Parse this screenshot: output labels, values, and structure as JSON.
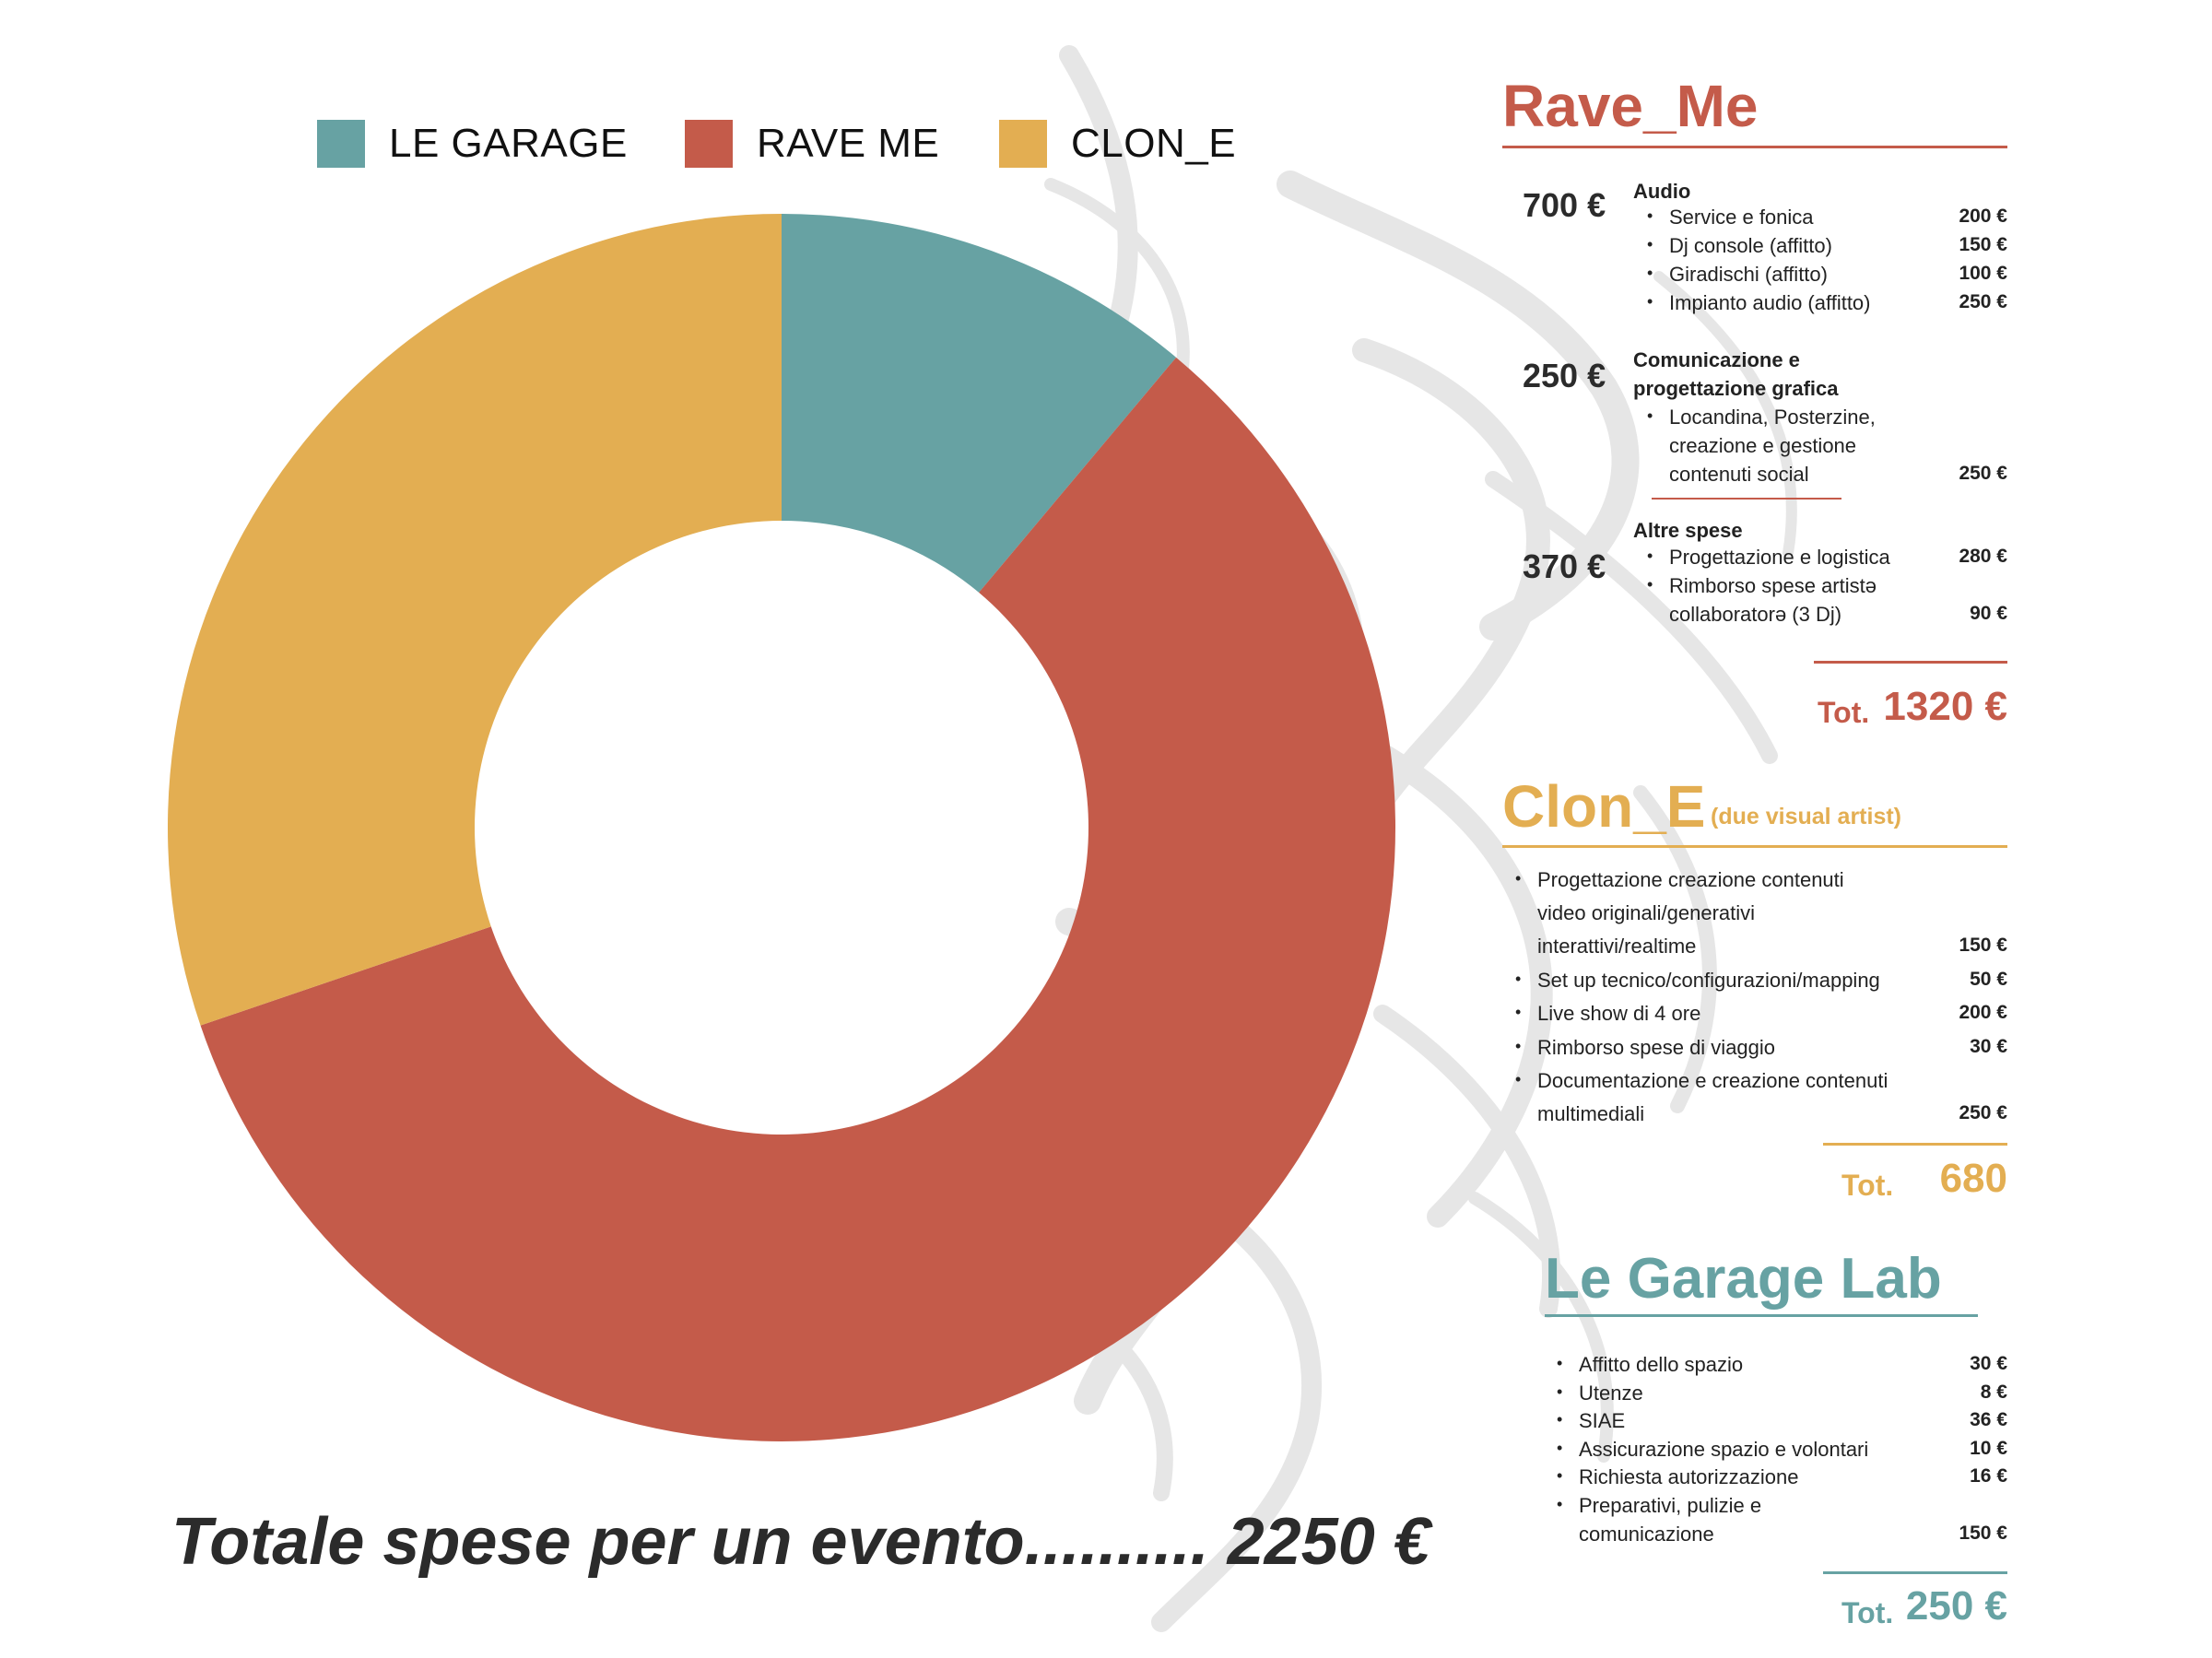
{
  "colors": {
    "le_garage": "#67a2a3",
    "rave_me": "#c45b4a",
    "clon_e": "#e3ae52",
    "background_art": "#e8e8e8"
  },
  "chart_data": {
    "type": "pie",
    "donut": true,
    "categories": [
      "LE GARAGE",
      "RAVE ME",
      "CLON_E"
    ],
    "values": [
      250,
      1320,
      680
    ],
    "legend": "top",
    "colors": [
      "#67a2a3",
      "#c45b4a",
      "#e3ae52"
    ]
  },
  "grand_total": "Totale spese per un evento.......... 2250 €",
  "rave_me": {
    "title": "Rave_Me",
    "groups": [
      {
        "amount": "700 €",
        "title": "Audio",
        "items": [
          {
            "label": "Service e fonica",
            "price": "200 €"
          },
          {
            "label": "Dj console (affitto)",
            "price": "150 €"
          },
          {
            "label": "Giradischi (affitto)",
            "price": "100 €"
          },
          {
            "label": "Impianto audio (affitto)",
            "price": "250 €"
          }
        ]
      },
      {
        "amount": "250 €",
        "title_lines": [
          "Comunicazione e",
          "progettazione grafica"
        ],
        "item_lines": [
          "Locandina, Posterzine,",
          "creazione e gestione",
          "contenuti social"
        ],
        "price": "250 €"
      },
      {
        "amount": "370 €",
        "title": "Altre spese",
        "items": [
          {
            "label": "Progettazione e logistica",
            "price": "280 €"
          },
          {
            "label": "Rimborso spese artistə",
            "price": ""
          },
          {
            "label": "collaboratorə (3 Dj)",
            "price": "90 €"
          }
        ]
      }
    ],
    "tot_label": "Tot.",
    "tot_value": "1320 €"
  },
  "clon_e": {
    "title": "Clon_E",
    "subtitle": "(due visual artist)",
    "lines": [
      {
        "text": "Progettazione creazione contenuti",
        "bullet": true,
        "price": ""
      },
      {
        "text": "video originali/generativi",
        "bullet": false,
        "price": ""
      },
      {
        "text": "interattivi/realtime",
        "bullet": false,
        "price": "150 €"
      },
      {
        "text": "Set up tecnico/configurazioni/mapping",
        "bullet": true,
        "price": "50 €"
      },
      {
        "text": "Live show di 4 ore",
        "bullet": true,
        "price": "200 €"
      },
      {
        "text": "Rimborso spese di viaggio",
        "bullet": true,
        "price": "30 €"
      },
      {
        "text": "Documentazione e creazione contenuti",
        "bullet": true,
        "price": ""
      },
      {
        "text": "multimediali",
        "bullet": false,
        "price": "250 €"
      }
    ],
    "tot_label": "Tot.",
    "tot_value": "680"
  },
  "le_garage_lab": {
    "title": "Le Garage Lab",
    "lines": [
      {
        "text": "Affitto dello spazio",
        "bullet": true,
        "price": "30 €"
      },
      {
        "text": "Utenze",
        "bullet": true,
        "price": "8 €"
      },
      {
        "text": "SIAE",
        "bullet": true,
        "price": "36 €"
      },
      {
        "text": "Assicurazione spazio e volontari",
        "bullet": true,
        "price": "10 €"
      },
      {
        "text": "Richiesta autorizzazione",
        "bullet": true,
        "price": "16 €"
      },
      {
        "text": "Preparativi, pulizie e",
        "bullet": true,
        "price": ""
      },
      {
        "text": "comunicazione",
        "bullet": false,
        "price": "150 €"
      }
    ],
    "tot_label": "Tot.",
    "tot_value": "250 €"
  }
}
